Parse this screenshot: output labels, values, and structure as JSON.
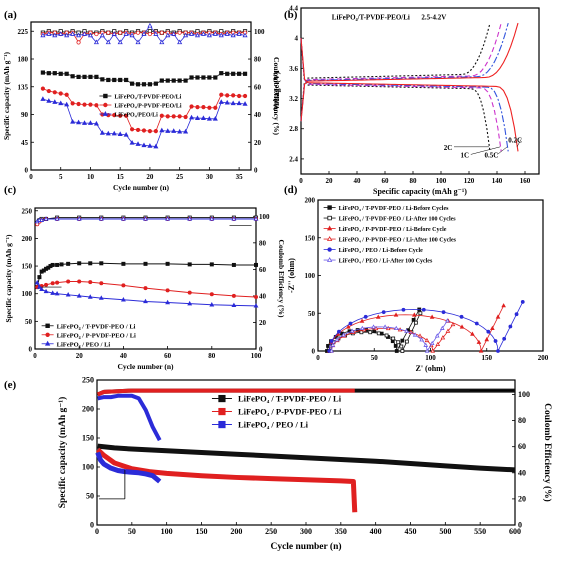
{
  "chart_data": [
    {
      "panel_label": "(a)",
      "type": "scatter",
      "xlabel": "Cycle number (n)",
      "ylabel": "Specific capacity (mAh g⁻¹)",
      "y2label": "Coulomb Efficiency (%)",
      "xlim": [
        0,
        37
      ],
      "ylim": [
        0,
        240
      ],
      "y2lim": [
        0,
        106.7
      ],
      "xticks": [
        0,
        5,
        10,
        15,
        20,
        25,
        30,
        35
      ],
      "yticks": [
        0,
        45,
        90,
        135,
        180,
        225
      ],
      "y2ticks": [
        0,
        20,
        40,
        60,
        80,
        100
      ],
      "legend_position": "center",
      "colors": {
        "t": "#111111",
        "p": "#e02020",
        "peo": "#2b2bd8"
      },
      "x": [
        2,
        3,
        4,
        5,
        6,
        7,
        8,
        9,
        10,
        11,
        12,
        13,
        14,
        15,
        16,
        17,
        18,
        19,
        20,
        21,
        22,
        23,
        24,
        25,
        26,
        27,
        28,
        29,
        30,
        31,
        32,
        33,
        34,
        35,
        36
      ],
      "series": [
        {
          "name": "LiFePO₄/T-PVDF-PEO/Li",
          "axis": "left",
          "values": [
            158,
            157,
            157,
            156,
            156,
            152,
            151,
            151,
            151,
            151,
            147,
            146,
            146,
            146,
            146,
            140,
            139,
            139,
            139,
            140,
            145,
            145,
            145,
            145,
            145,
            150,
            150,
            150,
            150,
            150,
            157,
            156,
            156,
            156,
            156
          ]
        },
        {
          "name": "LiFePO₄/P-PVDF-PEO/Li",
          "axis": "left",
          "values": [
            132,
            128,
            126,
            124,
            122,
            108,
            107,
            106,
            106,
            105,
            90,
            89,
            89,
            88,
            88,
            66,
            65,
            64,
            63,
            63,
            88,
            87,
            87,
            87,
            86,
            103,
            102,
            102,
            101,
            101,
            122,
            121,
            121,
            120,
            120
          ]
        },
        {
          "name": "LiFePO₄/PEO/Li",
          "axis": "left",
          "values": [
            115,
            112,
            110,
            108,
            106,
            78,
            77,
            76,
            76,
            75,
            60,
            59,
            59,
            58,
            57,
            44,
            42,
            40,
            39,
            38,
            64,
            63,
            63,
            62,
            62,
            85,
            84,
            84,
            83,
            83,
            110,
            109,
            108,
            108,
            107
          ]
        },
        {
          "axis": "right",
          "values": [
            99,
            100,
            99,
            100,
            99,
            100,
            99,
            100,
            99,
            99,
            100,
            99,
            100,
            99,
            100,
            99,
            100,
            99,
            100,
            100,
            99,
            100,
            99,
            100,
            99,
            99,
            100,
            99,
            100,
            99,
            100,
            99,
            100,
            99,
            100
          ]
        },
        {
          "axis": "right",
          "values": [
            98,
            99,
            99,
            98,
            99,
            99,
            92,
            98,
            99,
            98,
            99,
            99,
            98,
            99,
            99,
            98,
            99,
            99,
            98,
            99,
            99,
            99,
            98,
            99,
            99,
            99,
            98,
            99,
            99,
            99,
            98,
            99,
            99,
            99,
            99
          ]
        },
        {
          "axis": "right",
          "values": [
            97,
            98,
            97,
            98,
            97,
            98,
            97,
            98,
            97,
            92,
            97,
            92,
            98,
            92,
            98,
            97,
            92,
            98,
            104,
            98,
            92,
            97,
            98,
            92,
            97,
            98,
            97,
            98,
            97,
            98,
            97,
            98,
            97,
            98,
            97
          ]
        }
      ]
    },
    {
      "panel_label": "(b)",
      "type": "line",
      "title": "LiFePO₄/T-PVDF-PEO/Li",
      "annotation": "2.5-4.2V",
      "xlabel": "Specific capacity (mAh g⁻¹)",
      "ylabel": "Voltage (V)",
      "xlim": [
        0,
        170
      ],
      "ylim": [
        2.2,
        4.4
      ],
      "xticks": [
        0,
        20,
        40,
        60,
        80,
        100,
        120,
        140,
        160
      ],
      "yticks": [
        2.4,
        2.8,
        3.2,
        3.6,
        4.0,
        4.4
      ],
      "rates": [
        {
          "label": "2C",
          "color": "#111111",
          "capacity": 135,
          "charge_plateau": 3.47,
          "discharge_plateau": 3.38
        },
        {
          "label": "1C",
          "color": "#cc33cc",
          "capacity": 143,
          "charge_plateau": 3.45,
          "discharge_plateau": 3.39
        },
        {
          "label": "0.5C",
          "color": "#3355dd",
          "capacity": 148,
          "charge_plateau": 3.44,
          "discharge_plateau": 3.4
        },
        {
          "label": "0.2C",
          "color": "#ee2222",
          "capacity": 155,
          "charge_plateau": 3.43,
          "discharge_plateau": 3.41
        }
      ]
    },
    {
      "panel_label": "(c)",
      "type": "scatter",
      "xlabel": "Cycle number (n)",
      "ylabel": "Specific capacity (mAh g⁻¹)",
      "y2label": "Coulomb Efficiency (%)",
      "xlim": [
        0,
        100
      ],
      "ylim": [
        0,
        255
      ],
      "y2lim": [
        0,
        106.25
      ],
      "xticks": [
        0,
        20,
        40,
        60,
        80,
        100
      ],
      "yticks": [
        0,
        50,
        100,
        150,
        200,
        250
      ],
      "y2ticks": [
        0,
        20,
        40,
        60,
        80,
        100
      ],
      "legend_position": "bottom-left",
      "series": [
        {
          "name": "LiFePO₄ / T-PVDF-PEO / Li",
          "color": "#111111",
          "axis": "left",
          "x": [
            1,
            2,
            3,
            4,
            5,
            6,
            7,
            8,
            10,
            12,
            15,
            20,
            25,
            30,
            40,
            50,
            60,
            70,
            80,
            90,
            100
          ],
          "values": [
            112,
            130,
            140,
            142,
            145,
            147,
            150,
            152,
            152,
            153,
            154,
            155,
            155,
            155,
            154,
            154,
            154,
            153,
            153,
            152,
            152
          ]
        },
        {
          "name": "LiFePO₄ / P-PVDF-PEO / Li",
          "color": "#e02020",
          "axis": "left",
          "x": [
            1,
            2,
            3,
            5,
            8,
            10,
            15,
            20,
            25,
            30,
            40,
            50,
            60,
            70,
            80,
            90,
            100
          ],
          "values": [
            112,
            113,
            114,
            116,
            119,
            120,
            122,
            122,
            121,
            119,
            115,
            110,
            106,
            102,
            99,
            96,
            94
          ]
        },
        {
          "name": "LiFePO₄ / PEO / Li",
          "color": "#2b2bd8",
          "axis": "left",
          "x": [
            1,
            2,
            3,
            5,
            8,
            10,
            15,
            20,
            25,
            30,
            40,
            50,
            60,
            70,
            80,
            90,
            100
          ],
          "values": [
            120,
            112,
            108,
            104,
            101,
            100,
            98,
            96,
            94,
            92,
            89,
            86,
            84,
            82,
            80,
            79,
            78
          ]
        },
        {
          "color": "#111111",
          "axis": "right",
          "x": [
            1,
            2,
            3,
            5,
            10,
            20,
            30,
            40,
            50,
            60,
            70,
            80,
            90,
            100
          ],
          "values": [
            95,
            97,
            98,
            98,
            99,
            99,
            99,
            99,
            99,
            99,
            99,
            99,
            99,
            99
          ]
        },
        {
          "color": "#e02020",
          "axis": "right",
          "x": [
            1,
            2,
            3,
            5,
            10,
            20,
            30,
            40,
            50,
            60,
            70,
            80,
            90,
            100
          ],
          "values": [
            94,
            96,
            97,
            98,
            98,
            98,
            98,
            98,
            98,
            98,
            98,
            98,
            98,
            98
          ]
        },
        {
          "color": "#2b2bd8",
          "axis": "right",
          "x": [
            1,
            2,
            3,
            5,
            10,
            20,
            30,
            40,
            50,
            60,
            70,
            80,
            90,
            100
          ],
          "values": [
            96,
            97,
            97,
            98,
            98,
            98,
            98,
            98,
            98,
            98,
            98,
            98,
            98,
            98
          ]
        }
      ]
    },
    {
      "panel_label": "(d)",
      "type": "line",
      "xlabel": "Z' (ohm)",
      "ylabel": "-Z'' (ohm)",
      "xlim": [
        0,
        200
      ],
      "ylim": [
        0,
        200
      ],
      "xticks": [
        0,
        50,
        100,
        150,
        200
      ],
      "yticks": [
        0,
        50,
        100,
        150,
        200
      ],
      "legend_position": "top-left",
      "series": [
        {
          "name": "LiFePO₄ / T-PVDF-PEO / Li-Before Cycles",
          "color": "#111111",
          "filled": true,
          "rs": 8,
          "r1": 62,
          "peak": 28,
          "tail_dx": 20,
          "tail_dy": 55
        },
        {
          "name": "LiFePO₄ / T-PVDF-PEO / Li-After 100 Cycles",
          "color": "#111111",
          "filled": false,
          "rs": 10,
          "r1": 65,
          "peak": 25,
          "tail_dx": 16,
          "tail_dy": 50
        },
        {
          "name": "LiFePO₄ / P-PVDF-PEO / Li-Before Cycle",
          "color": "#e02020",
          "filled": true,
          "rs": 10,
          "r1": 135,
          "peak": 48,
          "tail_dx": 20,
          "tail_dy": 60
        },
        {
          "name": "LiFePO₄ / P-PVDF-PEO / Li-After 100 Cycles",
          "color": "#e02020",
          "filled": false,
          "rs": 12,
          "r1": 90,
          "peak": 30,
          "tail_dx": 18,
          "tail_dy": 35
        },
        {
          "name": "LiFePO₄ / PEO / Li-Before Cycle",
          "color": "#2b2bd8",
          "filled": true,
          "rs": 10,
          "r1": 150,
          "peak": 55,
          "tail_dx": 22,
          "tail_dy": 65
        },
        {
          "name": "LiFePO₄ / PEO / Li-After 100 Cycles",
          "color": "#6a5ae8",
          "filled": false,
          "rs": 12,
          "r1": 85,
          "peak": 32,
          "tail_dx": 18,
          "tail_dy": 40
        }
      ]
    },
    {
      "panel_label": "(e)",
      "type": "scatter",
      "xlabel": "Cycle number (n)",
      "ylabel": "Specific capacity (mAh g⁻¹)",
      "y2label": "Coulomb Efficiency (%)",
      "xlim": [
        0,
        600
      ],
      "ylim": [
        0,
        250
      ],
      "y2lim": [
        0,
        111.1
      ],
      "xticks": [
        0,
        50,
        100,
        150,
        200,
        250,
        300,
        350,
        400,
        450,
        500,
        550,
        600
      ],
      "yticks": [
        0,
        50,
        100,
        150,
        200,
        250
      ],
      "y2ticks": [
        0,
        20,
        40,
        60,
        80,
        100
      ],
      "legend_position": "top-center",
      "series": [
        {
          "name": "LiFePO₄ / T-PVDF-PEO / Li",
          "color": "#111111",
          "axis": "left",
          "x": [
            1,
            25,
            50,
            100,
            150,
            200,
            250,
            300,
            350,
            400,
            450,
            500,
            550,
            600
          ],
          "values": [
            136,
            133,
            131,
            128,
            125,
            122,
            119,
            116,
            113,
            110,
            106,
            102,
            98,
            95
          ]
        },
        {
          "name": "LiFePO₄ / P-PVDF-PEO / Li",
          "color": "#e02020",
          "axis": "left",
          "x": [
            1,
            10,
            25,
            50,
            75,
            100,
            150,
            200,
            250,
            300,
            350,
            368,
            370
          ],
          "values": [
            130,
            120,
            107,
            97,
            92,
            89,
            85,
            82,
            80,
            78,
            76,
            75,
            22
          ]
        },
        {
          "name": "LiFePO₄ / PEO / Li",
          "color": "#2b2bd8",
          "axis": "left",
          "x": [
            1,
            5,
            10,
            20,
            30,
            40,
            50,
            60,
            70,
            80,
            90
          ],
          "values": [
            125,
            112,
            105,
            98,
            94,
            92,
            91,
            90,
            88,
            85,
            75
          ]
        },
        {
          "color": "#111111",
          "axis": "right",
          "x": [
            1,
            10,
            50,
            100,
            200,
            300,
            400,
            500,
            600
          ],
          "values": [
            100,
            102,
            103,
            103,
            103,
            103,
            103,
            103,
            103
          ]
        },
        {
          "color": "#e02020",
          "axis": "right",
          "x": [
            1,
            10,
            50,
            100,
            200,
            300,
            370
          ],
          "values": [
            100,
            102,
            103,
            103,
            103,
            103,
            103
          ]
        },
        {
          "color": "#2b2bd8",
          "axis": "right",
          "x": [
            1,
            10,
            20,
            30,
            40,
            50,
            60,
            70,
            80,
            90
          ],
          "values": [
            97,
            98,
            98,
            99,
            99,
            99,
            97,
            88,
            75,
            65
          ]
        }
      ]
    }
  ]
}
